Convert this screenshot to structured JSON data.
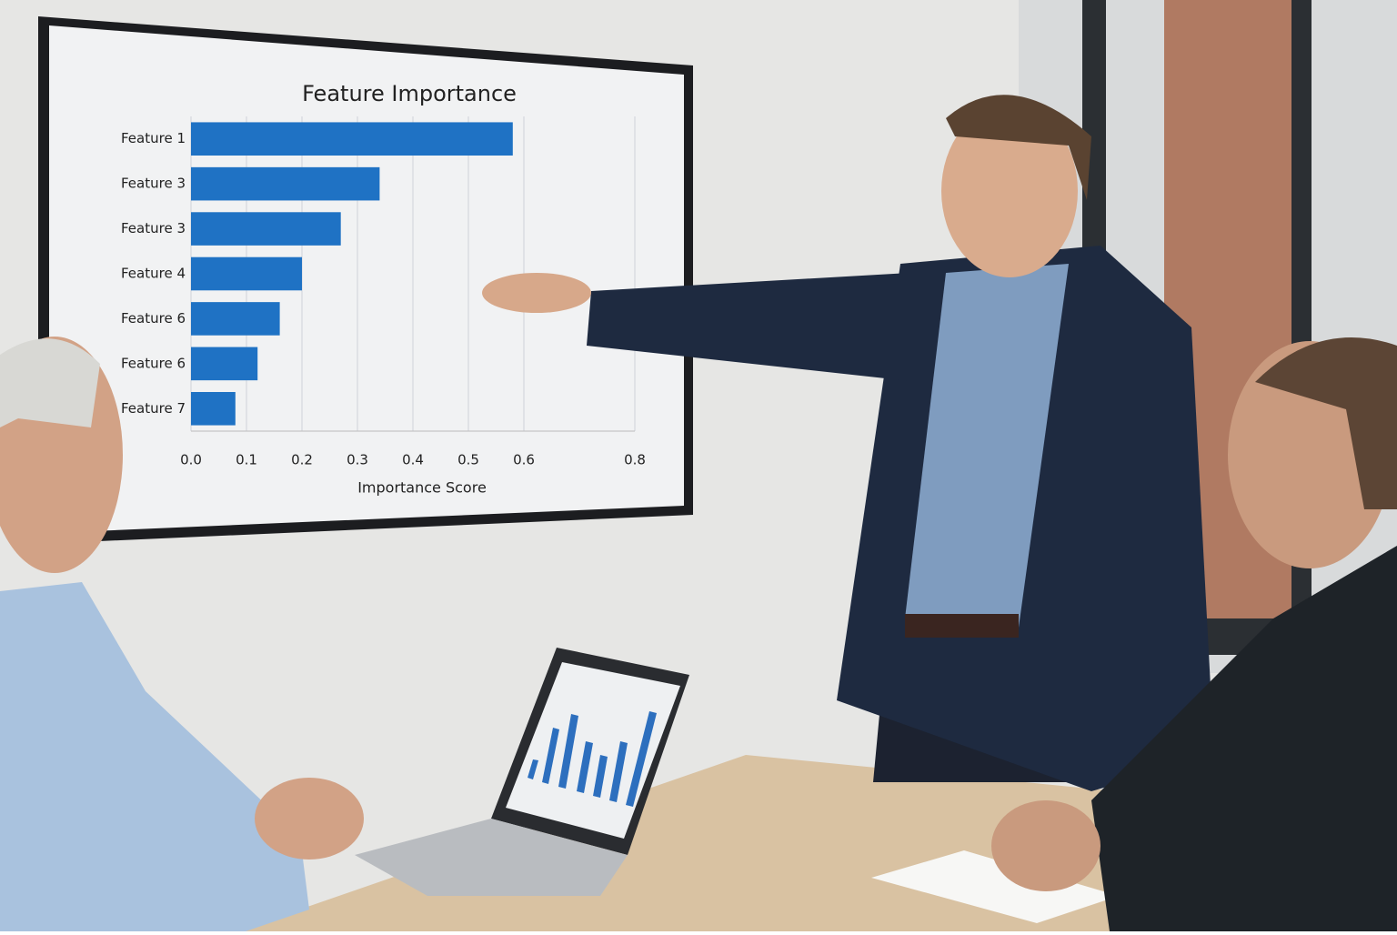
{
  "chart_data": {
    "type": "barh",
    "title": "Feature Importance",
    "x_label": "Importance Score",
    "categories": [
      "Feature 1",
      "Feature 3",
      "Feature 3",
      "Feature 4",
      "Feature 6",
      "Feature 6",
      "Feature 7"
    ],
    "values": [
      0.58,
      0.34,
      0.27,
      0.2,
      0.16,
      0.12,
      0.08
    ],
    "color": "#1f72c4",
    "xlim": [
      0,
      0.8
    ],
    "xticks": [
      {
        "value": 0,
        "label": "0.0"
      },
      0.1,
      0.2,
      0.3,
      0.4,
      0.5,
      0.6,
      0.8
    ],
    "grid": true
  }
}
